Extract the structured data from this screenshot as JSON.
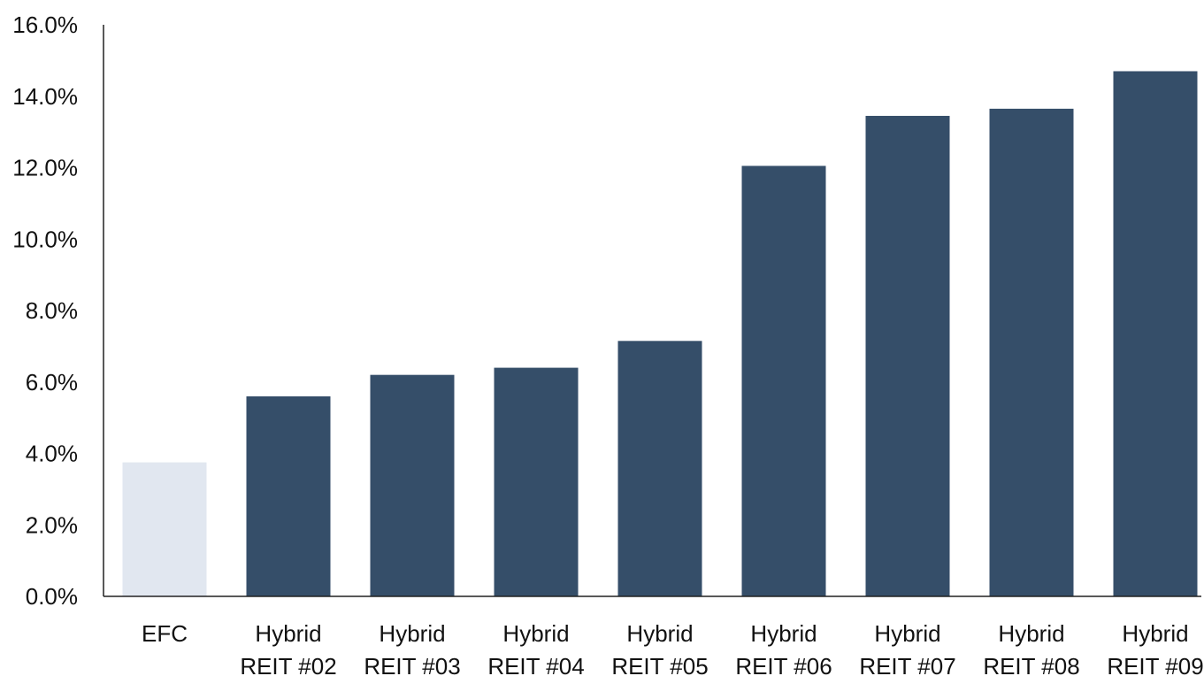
{
  "chart_data": {
    "type": "bar",
    "title": "",
    "xlabel": "",
    "ylabel": "",
    "ylim": [
      0,
      16
    ],
    "y_ticks": [
      0,
      2,
      4,
      6,
      8,
      10,
      12,
      14,
      16
    ],
    "y_tick_labels": [
      "0.0%",
      "2.0%",
      "4.0%",
      "6.0%",
      "8.0%",
      "10.0%",
      "12.0%",
      "14.0%",
      "16.0%"
    ],
    "grid": false,
    "legend": "none",
    "categories": [
      [
        "EFC"
      ],
      [
        "Hybrid",
        "REIT #02"
      ],
      [
        "Hybrid",
        "REIT #03"
      ],
      [
        "Hybrid",
        "REIT #04"
      ],
      [
        "Hybrid",
        "REIT #05"
      ],
      [
        "Hybrid",
        "REIT #06"
      ],
      [
        "Hybrid",
        "REIT #07"
      ],
      [
        "Hybrid",
        "REIT #08"
      ],
      [
        "Hybrid",
        "REIT #09"
      ]
    ],
    "values": [
      3.75,
      5.6,
      6.2,
      6.4,
      7.15,
      12.05,
      13.45,
      13.65,
      14.7
    ],
    "bar_colors": [
      "#e1e7f0",
      "#354e69",
      "#354e69",
      "#354e69",
      "#354e69",
      "#354e69",
      "#354e69",
      "#354e69",
      "#354e69"
    ],
    "axis_color": "#222222"
  }
}
